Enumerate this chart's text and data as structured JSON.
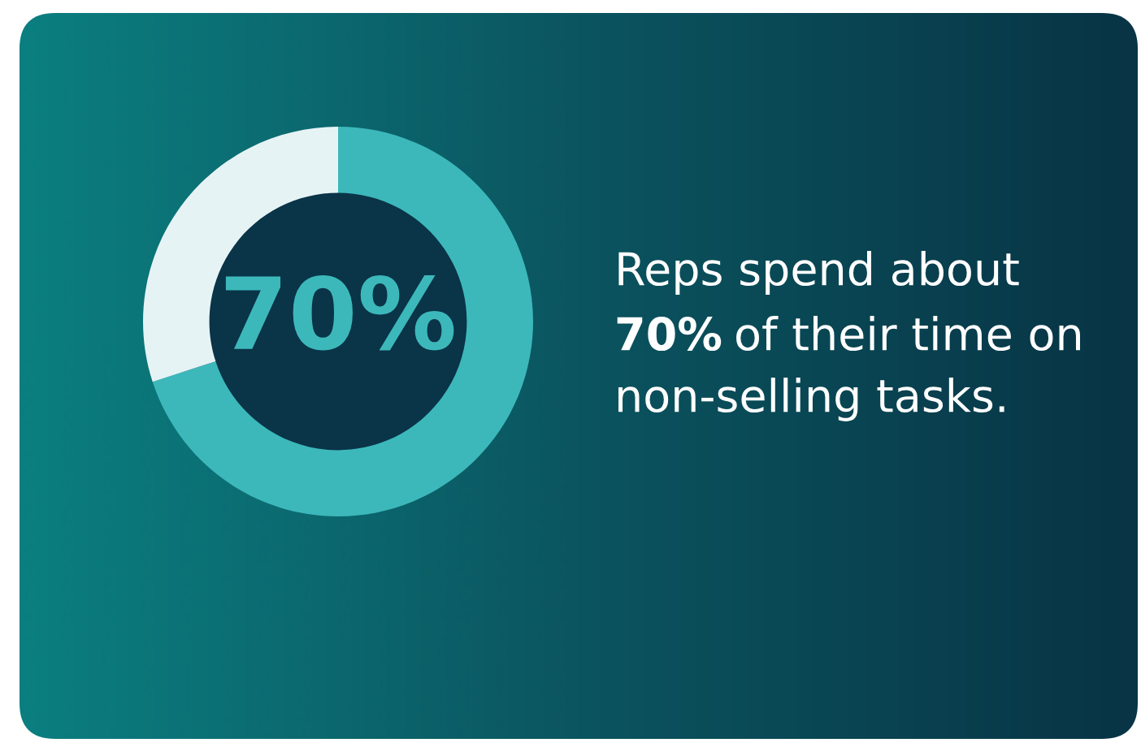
{
  "chart_data": {
    "type": "donut",
    "categories": [
      null,
      null
    ],
    "values": [
      70,
      30
    ],
    "colors": [
      "#3cb8bb",
      "#e6f3f5"
    ],
    "value_labels": [
      "70%",
      null
    ],
    "annotations": [
      "Reps spend about",
      "70%",
      "of their time on",
      "non-selling tasks."
    ]
  }
}
